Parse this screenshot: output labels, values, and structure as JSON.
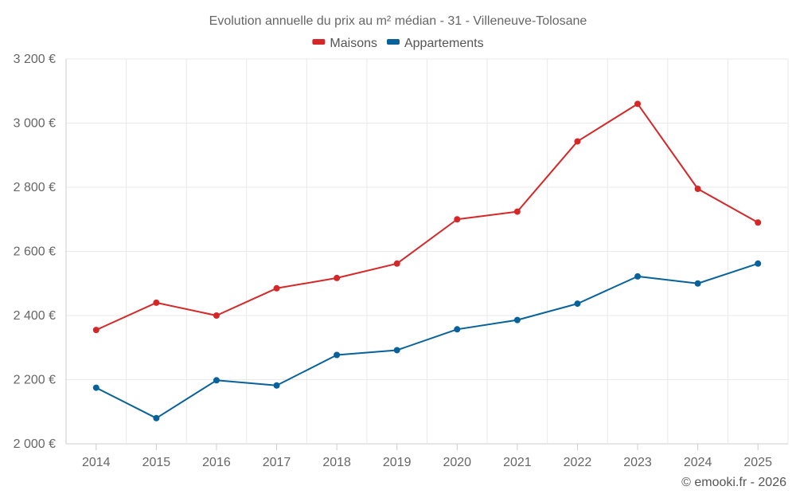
{
  "chart_data": {
    "type": "line",
    "title": "Evolution annuelle du prix au m² médian - 31 - Villeneuve-Tolosane",
    "categories": [
      "2014",
      "2015",
      "2016",
      "2017",
      "2018",
      "2019",
      "2020",
      "2021",
      "2022",
      "2023",
      "2024",
      "2025"
    ],
    "ylim": [
      2000,
      3200
    ],
    "yticks": [
      2000,
      2200,
      2400,
      2600,
      2800,
      3000,
      3200
    ],
    "ytick_labels": [
      "2 000 €",
      "2 200 €",
      "2 400 €",
      "2 600 €",
      "2 800 €",
      "3 000 €",
      "3 200 €"
    ],
    "xlabel": "",
    "ylabel": "",
    "grid": true,
    "legend_position": "top-center",
    "series": [
      {
        "name": "Maisons",
        "color": "#d62728",
        "values": [
          2355,
          2440,
          2400,
          2485,
          2517,
          2562,
          2700,
          2724,
          2943,
          3060,
          2795,
          2690
        ]
      },
      {
        "name": "Appartements",
        "color": "#07629b",
        "values": [
          2175,
          2080,
          2198,
          2182,
          2277,
          2292,
          2357,
          2386,
          2437,
          2522,
          2500,
          2562
        ]
      }
    ]
  },
  "credit": "© emooki.fr - 2026"
}
